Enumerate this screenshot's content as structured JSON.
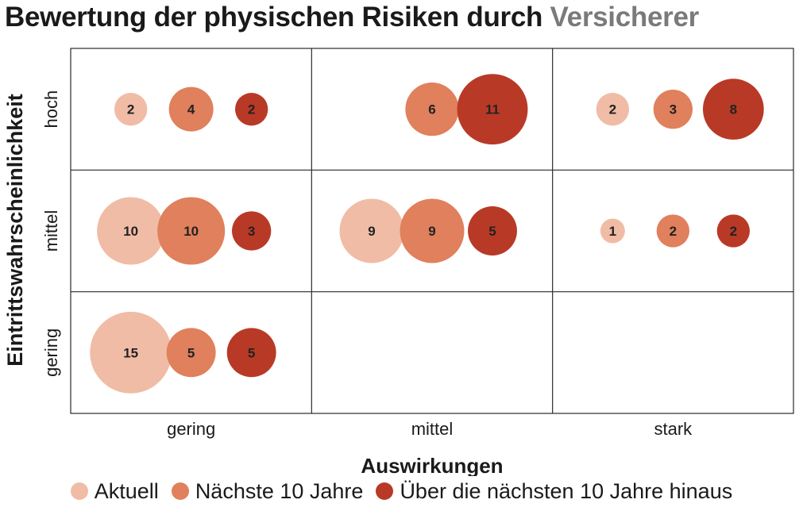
{
  "title": {
    "main": "Bewertung der physischen Risiken durch",
    "accent": "Versicherer"
  },
  "chart_data": {
    "type": "bubble-matrix",
    "xlabel": "Auswirkungen",
    "ylabel": "Eintrittswahrscheinlichkeit",
    "x_categories": [
      "gering",
      "mittel",
      "stark"
    ],
    "y_categories": [
      "hoch",
      "mittel",
      "gering"
    ],
    "series": [
      {
        "name": "Aktuell",
        "color": "#f0bca6"
      },
      {
        "name": "Nächste 10 Jahre",
        "color": "#e0805c"
      },
      {
        "name": "Über die nächsten 10 Jahre hinaus",
        "color": "#b83a26"
      }
    ],
    "cells": [
      {
        "x": "gering",
        "y": "hoch",
        "values": [
          2,
          4,
          2
        ]
      },
      {
        "x": "mittel",
        "y": "hoch",
        "values": [
          null,
          6,
          11
        ]
      },
      {
        "x": "stark",
        "y": "hoch",
        "values": [
          2,
          3,
          8
        ]
      },
      {
        "x": "gering",
        "y": "mittel",
        "values": [
          10,
          10,
          3
        ]
      },
      {
        "x": "mittel",
        "y": "mittel",
        "values": [
          9,
          9,
          5
        ]
      },
      {
        "x": "stark",
        "y": "mittel",
        "values": [
          1,
          2,
          2
        ]
      },
      {
        "x": "gering",
        "y": "gering",
        "values": [
          15,
          5,
          5
        ]
      },
      {
        "x": "mittel",
        "y": "gering",
        "values": [
          null,
          null,
          null
        ]
      },
      {
        "x": "stark",
        "y": "gering",
        "values": [
          null,
          null,
          null
        ]
      }
    ]
  }
}
